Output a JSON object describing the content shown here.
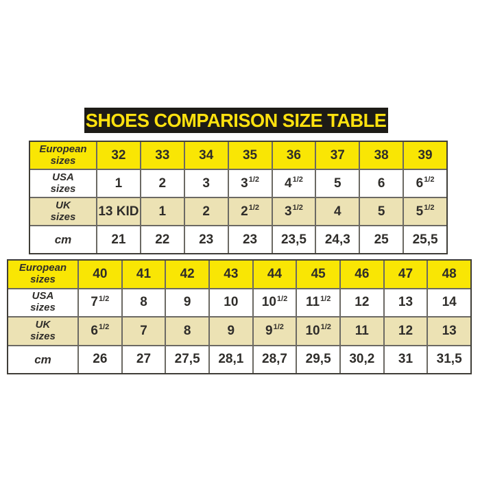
{
  "title": "SHOES COMPARISON SIZE TABLE",
  "colors": {
    "title_bar_bg": "#1d1b16",
    "title_text": "#ffe10e",
    "row_yellow": "#f9e604",
    "row_beige": "#ece2b4",
    "row_white": "#ffffff",
    "grid_border": "#6b6963",
    "outer_border": "#3f3d37",
    "cell_text": "#2f2d2a"
  },
  "chart_data": {
    "type": "table",
    "title": "SHOES COMPARISON SIZE TABLE",
    "tables": [
      {
        "name": "european-sizes-32-39",
        "rows": [
          {
            "kind": "euro",
            "label_lines": [
              "European",
              "sizes"
            ],
            "values": [
              "32",
              "33",
              "34",
              "35",
              "36",
              "37",
              "38",
              "39"
            ]
          },
          {
            "kind": "usa",
            "label_lines": [
              "USA",
              "sizes"
            ],
            "values": [
              "1",
              "2",
              "3",
              "3^1/2",
              "4^1/2",
              "5",
              "6",
              "6^1/2"
            ]
          },
          {
            "kind": "uk",
            "label_lines": [
              "UK",
              "sizes"
            ],
            "values": [
              "13 KID",
              "1",
              "2",
              "2^1/2",
              "3^1/2",
              "4",
              "5",
              "5^1/2"
            ]
          },
          {
            "kind": "cm",
            "label_lines": [
              "cm"
            ],
            "values": [
              "21",
              "22",
              "23",
              "23",
              "23,5",
              "24,3",
              "25",
              "25,5"
            ]
          }
        ]
      },
      {
        "name": "european-sizes-40-48",
        "rows": [
          {
            "kind": "euro",
            "label_lines": [
              "European",
              "sizes"
            ],
            "values": [
              "40",
              "41",
              "42",
              "43",
              "44",
              "45",
              "46",
              "47",
              "48"
            ]
          },
          {
            "kind": "usa",
            "label_lines": [
              "USA",
              "sizes"
            ],
            "values": [
              "7^1/2",
              "8",
              "9",
              "10",
              "10^1/2",
              "11^1/2",
              "12",
              "13",
              "14"
            ]
          },
          {
            "kind": "uk",
            "label_lines": [
              "UK",
              "sizes"
            ],
            "values": [
              "6^1/2",
              "7",
              "8",
              "9",
              "9^1/2",
              "10^1/2",
              "11",
              "12",
              "13"
            ]
          },
          {
            "kind": "cm",
            "label_lines": [
              "cm"
            ],
            "values": [
              "26",
              "27",
              "27,5",
              "28,1",
              "28,7",
              "29,5",
              "30,2",
              "31",
              "31,5"
            ]
          }
        ]
      }
    ]
  }
}
